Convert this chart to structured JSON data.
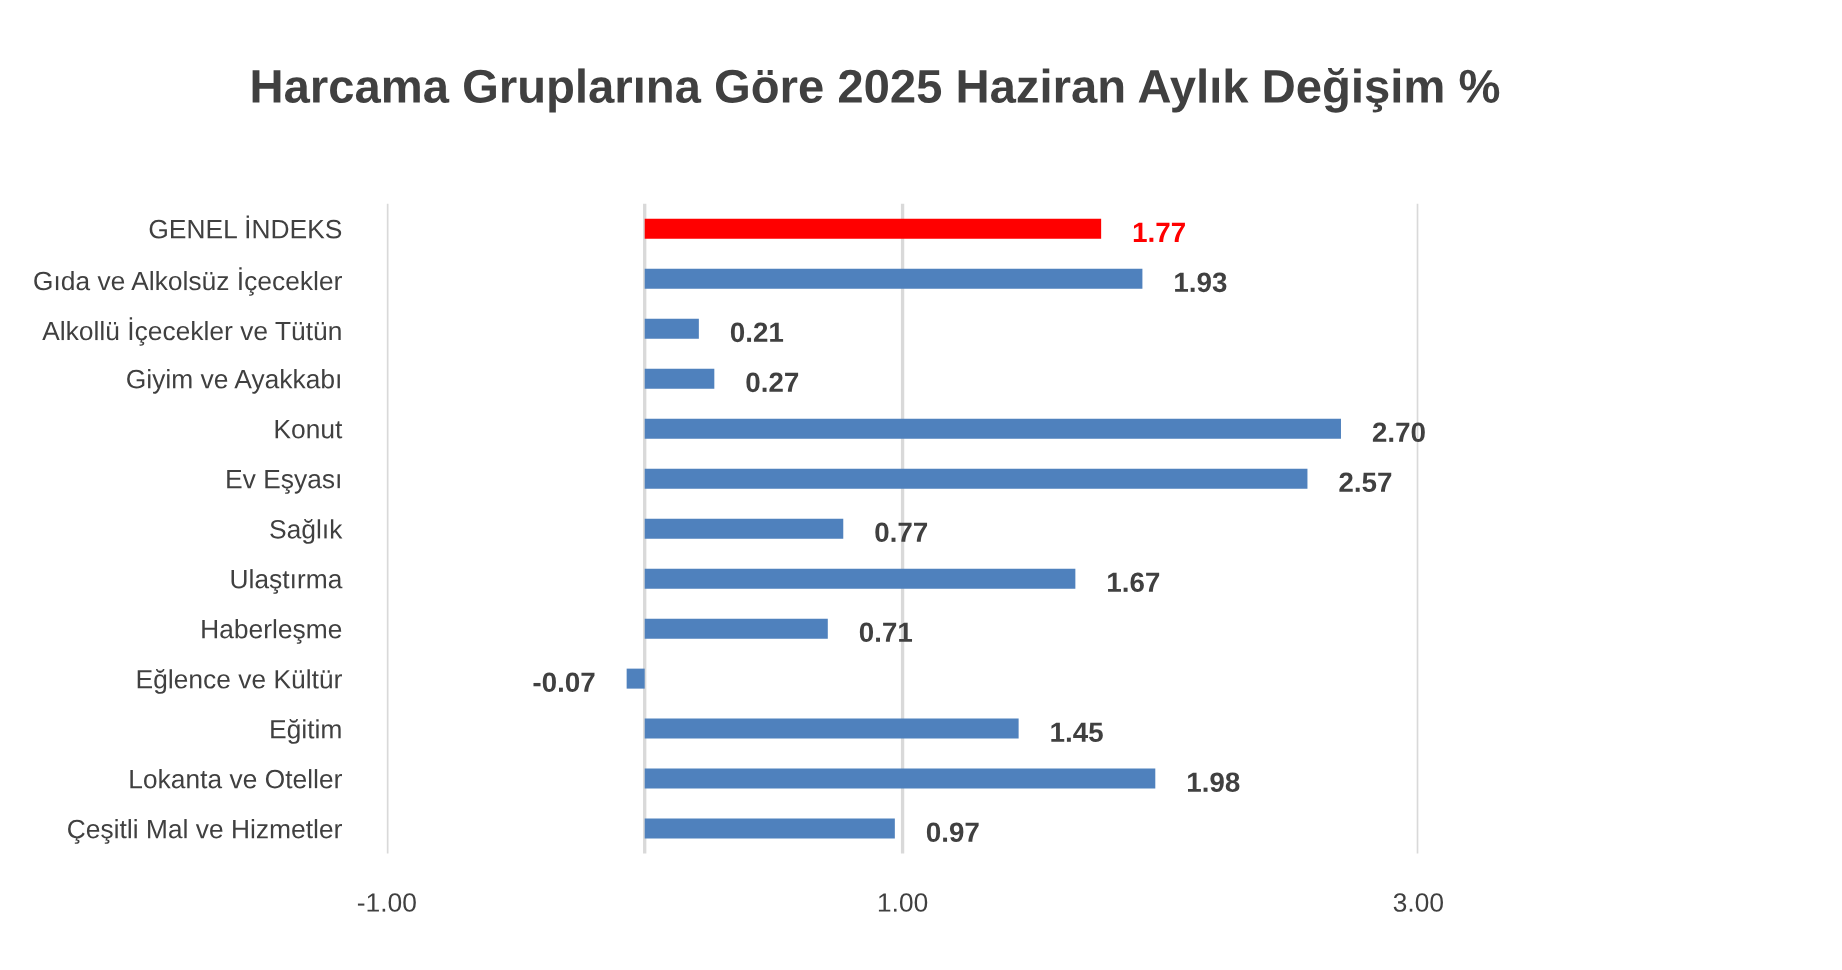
{
  "chart_data": {
    "type": "bar",
    "orientation": "horizontal",
    "title": "Harcama Gruplarına Göre 2025 Haziran Aylık Değişim %",
    "categories": [
      "GENEL İNDEKS",
      "Gıda ve Alkolsüz İçecekler",
      "Alkollü İçecekler ve Tütün",
      "Giyim ve Ayakkabı",
      "Konut",
      "Ev Eşyası",
      "Sağlık",
      "Ulaştırma",
      "Haberleşme",
      "Eğlence ve Kültür",
      "Eğitim",
      "Lokanta ve Oteller",
      "Çeşitli Mal ve Hizmetler"
    ],
    "values": [
      1.77,
      1.93,
      0.21,
      0.27,
      2.7,
      2.57,
      0.77,
      1.67,
      0.71,
      -0.07,
      1.45,
      1.98,
      0.97
    ],
    "value_labels": [
      "1.77",
      "1.93",
      "0.21",
      "0.27",
      "2.70",
      "2.57",
      "0.77",
      "1.67",
      "0.71",
      "-0.07",
      "1.45",
      "1.98",
      "0.97"
    ],
    "colors": [
      "#ff0000",
      "#4f81bd",
      "#4f81bd",
      "#4f81bd",
      "#4f81bd",
      "#4f81bd",
      "#4f81bd",
      "#4f81bd",
      "#4f81bd",
      "#4f81bd",
      "#4f81bd",
      "#4f81bd",
      "#4f81bd"
    ],
    "xlim": [
      -1,
      3
    ],
    "xticks": [
      {
        "value": -1,
        "label": "-1.00"
      },
      {
        "value": 1,
        "label": "1.00"
      },
      {
        "value": 3,
        "label": "3.00"
      }
    ],
    "grid": "x"
  }
}
